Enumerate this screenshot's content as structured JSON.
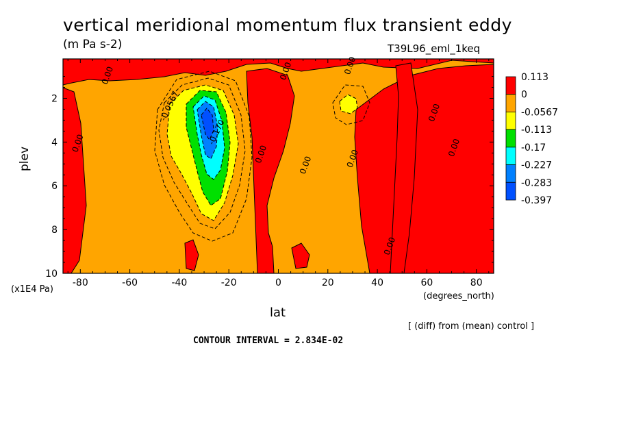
{
  "chart_data": {
    "type": "contour",
    "title": "vertical meridional momentum flux transient eddy",
    "units": "(m Pa s-2)",
    "run_id": "T39L96_eml_1keq",
    "xlabel": "lat",
    "xunits": "(degrees_north)",
    "ylabel": "plev",
    "yunits": "(x1E4 Pa)",
    "diff_note": "[ (diff) from (mean) control ]",
    "contour_interval": "CONTOUR INTERVAL = 2.834E-02",
    "xlim": [
      -87,
      87
    ],
    "ylim": [
      0.2,
      10
    ],
    "y_inverted": true,
    "xticks": [
      -80,
      -60,
      -40,
      -20,
      0,
      20,
      40,
      60,
      80
    ],
    "xticklabels": [
      "-80",
      "-60",
      "-40",
      "-20",
      "0",
      "20",
      "40",
      "60",
      "80"
    ],
    "yticks": [
      2,
      4,
      6,
      8,
      10
    ],
    "yticklabels": [
      "2",
      "4",
      "6",
      "8",
      "10"
    ],
    "colorbar": {
      "labels": [
        "0.113",
        "0",
        "-0.0567",
        "-0.113",
        "-0.17",
        "-0.227",
        "-0.283",
        "-0.397"
      ],
      "colors": [
        "#ff0000",
        "#ffa500",
        "#ffff00",
        "#00e000",
        "#00ffff",
        "#0080ff",
        "#0050ff"
      ]
    },
    "contour_labels": [
      {
        "text": "0.00",
        "x": -68,
        "y": 1.0
      },
      {
        "text": "0.00",
        "x": 4,
        "y": 0.8
      },
      {
        "text": "0.00",
        "x": 30,
        "y": 0.55
      },
      {
        "text": "0.00",
        "x": -80,
        "y": 4.1
      },
      {
        "text": "0.00",
        "x": -6,
        "y": 4.6
      },
      {
        "text": "0.00",
        "x": 12,
        "y": 5.1
      },
      {
        "text": "0.00",
        "x": 31,
        "y": 4.8
      },
      {
        "text": "0.00",
        "x": 64,
        "y": 2.7
      },
      {
        "text": "0.00",
        "x": 72,
        "y": 4.3
      },
      {
        "text": "0.00",
        "x": 46,
        "y": 8.8
      },
      {
        "text": "-0.0567",
        "x": -43,
        "y": 2.4
      },
      {
        "text": "-0.170",
        "x": -24,
        "y": 3.6
      }
    ]
  }
}
